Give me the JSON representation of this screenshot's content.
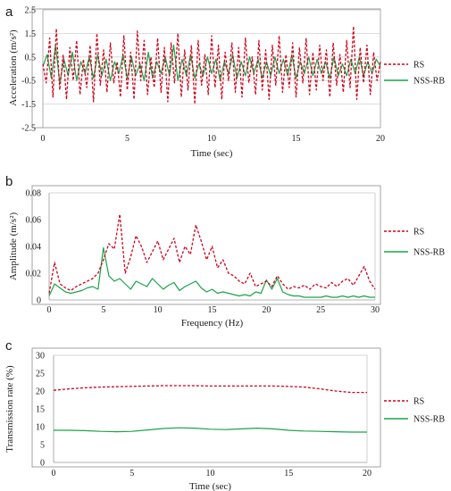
{
  "colors": {
    "RS": "#d0021b",
    "NSS-RB": "#1aa34a",
    "frame": "#8c8c8c",
    "grid": "#d4d4d4"
  },
  "chart_data": [
    {
      "panel_label": "a",
      "type": "line",
      "xlabel": "Time (sec)",
      "ylabel": "Acceleration (m/s²)",
      "xlim": [
        0,
        20
      ],
      "ylim": [
        -2.5,
        2.5
      ],
      "x_ticks": [
        0,
        5,
        10,
        15,
        20
      ],
      "y_ticks": [
        -2.5,
        -1.5,
        -0.5,
        0.5,
        1.5,
        2.5
      ],
      "y_tick_labels": [
        "-2.5",
        "-1.5",
        "-0.5",
        "0.5",
        "1.5",
        "2.5"
      ],
      "grid": "horizontal",
      "legend": "right",
      "series": [
        {
          "name": "RS",
          "dash": true,
          "x": [
            0,
            0.2,
            0.4,
            0.6,
            0.8,
            1,
            1.2,
            1.4,
            1.6,
            1.8,
            2,
            2.2,
            2.4,
            2.6,
            2.8,
            3,
            3.2,
            3.4,
            3.6,
            3.8,
            4,
            4.2,
            4.4,
            4.6,
            4.8,
            5,
            5.2,
            5.4,
            5.6,
            5.8,
            6,
            6.2,
            6.4,
            6.6,
            6.8,
            7,
            7.2,
            7.4,
            7.6,
            7.8,
            8,
            8.2,
            8.4,
            8.6,
            8.8,
            9,
            9.2,
            9.4,
            9.6,
            9.8,
            10,
            10.2,
            10.4,
            10.6,
            10.8,
            11,
            11.2,
            11.4,
            11.6,
            11.8,
            12,
            12.2,
            12.4,
            12.6,
            12.8,
            13,
            13.2,
            13.4,
            13.6,
            13.8,
            14,
            14.2,
            14.4,
            14.6,
            14.8,
            15,
            15.2,
            15.4,
            15.6,
            15.8,
            16,
            16.2,
            16.4,
            16.6,
            16.8,
            17,
            17.2,
            17.4,
            17.6,
            17.8,
            18,
            18.2,
            18.4,
            18.6,
            18.8,
            19,
            19.2,
            19.4,
            19.6,
            19.8,
            20
          ],
          "y": [
            0.2,
            -0.6,
            1.3,
            -1.2,
            1.7,
            -0.9,
            0.6,
            -1.3,
            0.9,
            -0.5,
            1.2,
            -1.1,
            0.4,
            -0.8,
            1.0,
            -1.4,
            1.5,
            -0.7,
            0.8,
            -1.0,
            1.1,
            -0.6,
            0.3,
            -1.2,
            1.4,
            -0.9,
            0.7,
            -1.3,
            1.6,
            -0.5,
            1.2,
            -1.1,
            0.5,
            -0.8,
            1.3,
            -1.0,
            0.9,
            -1.4,
            1.1,
            -0.6,
            1.5,
            -1.2,
            0.8,
            -0.9,
            1.0,
            -1.5,
            1.2,
            -0.7,
            0.6,
            -1.1,
            1.4,
            -0.8,
            1.0,
            -1.3,
            0.7,
            -0.5,
            1.1,
            -1.0,
            0.9,
            -1.2,
            1.3,
            -0.6,
            0.5,
            -1.1,
            1.2,
            -0.9,
            0.8,
            -1.3,
            1.0,
            -0.7,
            1.4,
            -1.0,
            0.6,
            -0.8,
            1.1,
            -1.2,
            0.9,
            -0.6,
            1.3,
            -1.1,
            0.7,
            -0.9,
            1.0,
            -0.5,
            0.8,
            -1.2,
            1.1,
            -0.7,
            0.6,
            -1.0,
            1.2,
            -0.8,
            1.8,
            -1.3,
            0.9,
            -0.6,
            1.0,
            -1.1,
            0.7,
            -0.5,
            0.3
          ]
        },
        {
          "name": "NSS-RB",
          "dash": false,
          "x": [
            0,
            0.25,
            0.5,
            0.75,
            1,
            1.25,
            1.5,
            1.75,
            2,
            2.25,
            2.5,
            2.75,
            3,
            3.25,
            3.5,
            3.75,
            4,
            4.25,
            4.5,
            4.75,
            5,
            5.25,
            5.5,
            5.75,
            6,
            6.25,
            6.5,
            6.75,
            7,
            7.25,
            7.5,
            7.75,
            8,
            8.25,
            8.5,
            8.75,
            9,
            9.25,
            9.5,
            9.75,
            10,
            10.25,
            10.5,
            10.75,
            11,
            11.25,
            11.5,
            11.75,
            12,
            12.25,
            12.5,
            12.75,
            13,
            13.25,
            13.5,
            13.75,
            14,
            14.25,
            14.5,
            14.75,
            15,
            15.25,
            15.5,
            15.75,
            16,
            16.25,
            16.5,
            16.75,
            17,
            17.25,
            17.5,
            17.75,
            18,
            18.25,
            18.5,
            18.75,
            19,
            19.25,
            19.5,
            19.75,
            20
          ],
          "y": [
            0.1,
            0.6,
            -0.4,
            1.0,
            -0.6,
            0.4,
            -0.3,
            0.7,
            -0.5,
            0.3,
            -0.2,
            0.5,
            -0.4,
            0.6,
            -0.3,
            0.4,
            -0.5,
            0.3,
            -0.2,
            0.6,
            -0.4,
            0.5,
            -0.3,
            0.2,
            -0.5,
            0.7,
            -0.4,
            0.3,
            -0.2,
            0.5,
            -0.3,
            1.0,
            -0.5,
            0.4,
            -0.3,
            0.6,
            -0.4,
            0.2,
            -0.3,
            0.5,
            -0.2,
            0.4,
            -0.5,
            0.3,
            -0.2,
            0.6,
            -0.4,
            0.3,
            -0.3,
            0.5,
            -0.2,
            0.4,
            -0.4,
            0.3,
            -0.3,
            0.5,
            -0.2,
            0.4,
            -0.3,
            0.6,
            -0.4,
            0.3,
            -0.2,
            0.5,
            -0.3,
            0.4,
            -0.2,
            0.3,
            -0.4,
            0.5,
            -0.3,
            0.2,
            -0.3,
            0.4,
            -0.2,
            0.5,
            -0.3,
            0.3,
            -0.2,
            0.4,
            0.1
          ]
        }
      ]
    },
    {
      "panel_label": "b",
      "type": "line",
      "xlabel": "Frequency (Hz)",
      "ylabel": "Amplitude (m/s²)",
      "xlim": [
        0,
        30
      ],
      "ylim": [
        0,
        0.08
      ],
      "x_ticks": [
        0,
        5,
        10,
        15,
        20,
        25,
        30
      ],
      "y_ticks": [
        0,
        0.02,
        0.04,
        0.06,
        0.08
      ],
      "y_tick_labels": [
        "0",
        "0.02",
        "0.04",
        "0.06",
        "0.08"
      ],
      "grid": "none",
      "legend": "right",
      "series": [
        {
          "name": "RS",
          "dash": true,
          "x": [
            0,
            0.5,
            1,
            1.5,
            2,
            2.5,
            3,
            3.5,
            4,
            4.5,
            5,
            5.5,
            6,
            6.5,
            7,
            7.5,
            8,
            8.5,
            9,
            9.5,
            10,
            10.5,
            11,
            11.5,
            12,
            12.5,
            13,
            13.5,
            14,
            14.5,
            15,
            15.5,
            16,
            16.5,
            17,
            17.5,
            18,
            18.5,
            19,
            19.5,
            20,
            20.5,
            21,
            21.5,
            22,
            22.5,
            23,
            23.5,
            24,
            24.5,
            25,
            25.5,
            26,
            26.5,
            27,
            27.5,
            28,
            28.5,
            29,
            29.5,
            30
          ],
          "y": [
            0.005,
            0.028,
            0.012,
            0.009,
            0.007,
            0.01,
            0.012,
            0.014,
            0.016,
            0.02,
            0.03,
            0.042,
            0.038,
            0.064,
            0.02,
            0.032,
            0.048,
            0.04,
            0.028,
            0.036,
            0.044,
            0.03,
            0.038,
            0.046,
            0.028,
            0.04,
            0.034,
            0.056,
            0.044,
            0.03,
            0.04,
            0.024,
            0.03,
            0.02,
            0.018,
            0.014,
            0.012,
            0.02,
            0.01,
            0.012,
            0.014,
            0.01,
            0.018,
            0.012,
            0.008,
            0.01,
            0.009,
            0.011,
            0.008,
            0.012,
            0.01,
            0.009,
            0.013,
            0.01,
            0.014,
            0.016,
            0.011,
            0.018,
            0.025,
            0.014,
            0.008
          ]
        },
        {
          "name": "NSS-RB",
          "dash": false,
          "x": [
            0,
            0.5,
            1,
            1.5,
            2,
            2.5,
            3,
            3.5,
            4,
            4.5,
            5,
            5.5,
            6,
            6.5,
            7,
            7.5,
            8,
            8.5,
            9,
            9.5,
            10,
            10.5,
            11,
            11.5,
            12,
            12.5,
            13,
            13.5,
            14,
            14.5,
            15,
            15.5,
            16,
            16.5,
            17,
            17.5,
            18,
            18.5,
            19,
            19.5,
            20,
            20.5,
            21,
            21.5,
            22,
            22.5,
            23,
            23.5,
            24,
            24.5,
            25,
            25.5,
            26,
            26.5,
            27,
            27.5,
            28,
            28.5,
            29,
            29.5,
            30
          ],
          "y": [
            0.003,
            0.012,
            0.009,
            0.006,
            0.005,
            0.006,
            0.007,
            0.009,
            0.01,
            0.008,
            0.039,
            0.018,
            0.014,
            0.016,
            0.012,
            0.008,
            0.014,
            0.012,
            0.01,
            0.016,
            0.012,
            0.008,
            0.011,
            0.013,
            0.007,
            0.01,
            0.012,
            0.014,
            0.009,
            0.006,
            0.008,
            0.005,
            0.006,
            0.005,
            0.004,
            0.003,
            0.004,
            0.003,
            0.006,
            0.005,
            0.015,
            0.008,
            0.016,
            0.006,
            0.004,
            0.003,
            0.003,
            0.002,
            0.002,
            0.002,
            0.002,
            0.003,
            0.002,
            0.002,
            0.003,
            0.002,
            0.003,
            0.002,
            0.003,
            0.002,
            0.002
          ]
        }
      ]
    },
    {
      "panel_label": "c",
      "type": "line",
      "xlabel": "Time (sec)",
      "ylabel": "Transmission rate (%)",
      "xlim": [
        0,
        20
      ],
      "ylim": [
        0,
        30
      ],
      "x_ticks": [
        0,
        5,
        10,
        15,
        20
      ],
      "y_ticks": [
        0,
        5,
        10,
        15,
        20,
        25,
        30
      ],
      "y_tick_labels": [
        "0",
        "5",
        "10",
        "15",
        "20",
        "25",
        "30"
      ],
      "grid": "none",
      "legend": "right",
      "series": [
        {
          "name": "RS",
          "dash": true,
          "x": [
            0,
            1,
            2,
            3,
            4,
            5,
            6,
            7,
            8,
            9,
            10,
            11,
            12,
            13,
            14,
            15,
            16,
            17,
            18,
            19,
            20
          ],
          "y": [
            20.2,
            20.6,
            20.9,
            21.1,
            21.2,
            21.3,
            21.4,
            21.5,
            21.5,
            21.5,
            21.4,
            21.4,
            21.4,
            21.4,
            21.4,
            21.3,
            21.1,
            20.6,
            20.0,
            19.6,
            19.6
          ]
        },
        {
          "name": "NSS-RB",
          "dash": false,
          "x": [
            0,
            1,
            2,
            3,
            4,
            5,
            6,
            7,
            8,
            9,
            10,
            11,
            12,
            13,
            14,
            15,
            16,
            17,
            18,
            19,
            20
          ],
          "y": [
            9.0,
            9.0,
            8.9,
            8.7,
            8.6,
            8.7,
            9.1,
            9.5,
            9.7,
            9.6,
            9.3,
            9.2,
            9.4,
            9.6,
            9.4,
            9.0,
            8.8,
            8.7,
            8.6,
            8.5,
            8.5
          ]
        }
      ]
    }
  ]
}
